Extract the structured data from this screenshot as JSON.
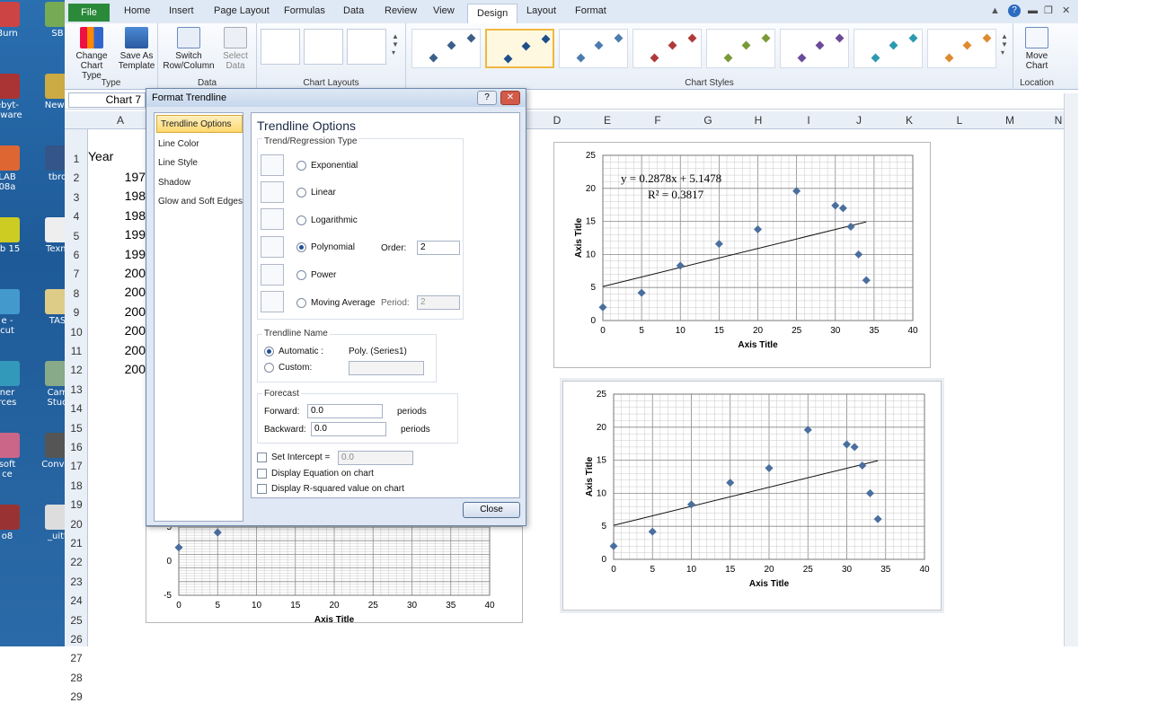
{
  "desktop": {
    "icons": [
      {
        "label": "Burn"
      },
      {
        "label": "SB"
      },
      {
        "label": "ebyt-\nalware"
      },
      {
        "label": "New f"
      },
      {
        "label": "LAB\n08a"
      },
      {
        "label": "tbro"
      },
      {
        "label": "ab 15"
      },
      {
        "label": "Texm"
      },
      {
        "label": "e -\ncut"
      },
      {
        "label": "TAS"
      },
      {
        "label": "ner\nrces"
      },
      {
        "label": "Cam\nStud"
      },
      {
        "label": "soft\nce"
      },
      {
        "label": "Conver"
      },
      {
        "label": "o8"
      },
      {
        "label": "_uitt"
      }
    ]
  },
  "tabs": {
    "file": "File",
    "home": "Home",
    "insert": "Insert",
    "page_layout": "Page Layout",
    "formulas": "Formulas",
    "data": "Data",
    "review": "Review",
    "view": "View",
    "design": "Design",
    "layout": "Layout",
    "format": "Format"
  },
  "ribbon": {
    "change_chart_type": "Change\nChart Type",
    "save_as_template": "Save As\nTemplate",
    "type_group": "Type",
    "switch_row_col": "Switch\nRow/Column",
    "select_data": "Select\nData",
    "data_group": "Data",
    "chart_layouts_group": "Chart Layouts",
    "chart_styles_group": "Chart Styles",
    "move_chart": "Move\nChart",
    "location_group": "Location",
    "style_colors": [
      "#3b5f8a",
      "#1f4f8a",
      "#4c7bb0",
      "#b03a3a",
      "#7a9a3a",
      "#6a4a9a",
      "#2a9ab0",
      "#e08a30"
    ]
  },
  "name_box": "Chart 7",
  "columns": [
    "A",
    "D",
    "E",
    "F",
    "G",
    "H",
    "I",
    "J",
    "K",
    "L",
    "M",
    "N"
  ],
  "rows": [
    "1",
    "2",
    "3",
    "4",
    "5",
    "6",
    "7",
    "8",
    "9",
    "10",
    "11",
    "12",
    "13",
    "14",
    "15",
    "16",
    "17",
    "18",
    "19",
    "20",
    "21",
    "22",
    "23",
    "24",
    "25",
    "26",
    "27",
    "28",
    "29"
  ],
  "cells": {
    "a1": "Year",
    "years": [
      "197",
      "198",
      "198",
      "199",
      "199",
      "200",
      "200",
      "200",
      "200",
      "200",
      "200"
    ]
  },
  "dialog": {
    "title": "Format Trendline",
    "help": "?",
    "close_x": "✕",
    "nav": [
      "Trendline Options",
      "Line Color",
      "Line Style",
      "Shadow",
      "Glow and Soft Edges"
    ],
    "heading": "Trendline Options",
    "regression_label": "Trend/Regression Type",
    "types": {
      "exponential": "Exponential",
      "linear": "Linear",
      "logarithmic": "Logarithmic",
      "polynomial": "Polynomial",
      "power": "Power",
      "moving_average": "Moving Average"
    },
    "order_label": "Order:",
    "order_value": "2",
    "period_label": "Period:",
    "period_value": "2",
    "name_label": "Trendline Name",
    "automatic_label": "Automatic :",
    "automatic_value": "Poly. (Series1)",
    "custom_label": "Custom:",
    "forecast_label": "Forecast",
    "forward_label": "Forward:",
    "forward_value": "0.0",
    "backward_label": "Backward:",
    "backward_value": "0.0",
    "periods": "periods",
    "intercept_label": "Set Intercept =",
    "intercept_value": "0.0",
    "display_equation": "Display Equation on chart",
    "display_r2": "Display R-squared value on chart",
    "close_button": "Close"
  },
  "chart_data": [
    {
      "type": "scatter",
      "title": "",
      "xlabel": "Axis Title",
      "ylabel": "Axis Title",
      "xlim": [
        0,
        40
      ],
      "ylim": [
        0,
        25
      ],
      "xticks": [
        0,
        5,
        10,
        15,
        20,
        25,
        30,
        35,
        40
      ],
      "yticks": [
        0,
        5,
        10,
        15,
        20,
        25
      ],
      "grid": true,
      "points": [
        [
          0,
          2
        ],
        [
          5,
          4.2
        ],
        [
          10,
          8.3
        ],
        [
          15,
          11.6
        ],
        [
          20,
          13.8
        ],
        [
          25,
          19.6
        ],
        [
          30,
          17.4
        ],
        [
          31,
          17
        ],
        [
          32,
          14.2
        ],
        [
          33,
          10
        ],
        [
          34,
          6.1
        ]
      ],
      "trendline": {
        "slope": 0.2878,
        "intercept": 5.1478,
        "x_range": [
          0,
          34
        ]
      },
      "equation": "y = 0.2878x + 5.1478",
      "r_squared": "R² = 0.3817",
      "marker_color": "#4a6f9e"
    },
    {
      "type": "scatter",
      "title": "",
      "xlabel": "Axis Title",
      "ylabel": "Axis Title",
      "xlim": [
        0,
        40
      ],
      "ylim": [
        0,
        25
      ],
      "xticks": [
        0,
        5,
        10,
        15,
        20,
        25,
        30,
        35,
        40
      ],
      "yticks": [
        0,
        5,
        10,
        15,
        20,
        25
      ],
      "grid": true,
      "points": [
        [
          0,
          2
        ],
        [
          5,
          4.2
        ],
        [
          10,
          8.3
        ],
        [
          15,
          11.6
        ],
        [
          20,
          13.8
        ],
        [
          25,
          19.6
        ],
        [
          30,
          17.4
        ],
        [
          31,
          17
        ],
        [
          32,
          14.2
        ],
        [
          33,
          10
        ],
        [
          34,
          6.1
        ]
      ],
      "trendline": {
        "slope": 0.2878,
        "intercept": 5.1478,
        "x_range": [
          0,
          34
        ]
      },
      "marker_color": "#4a6f9e"
    },
    {
      "type": "scatter",
      "title": "",
      "xlabel": "Axis Title",
      "ylabel": "",
      "xlim": [
        0,
        40
      ],
      "ylim": [
        -5,
        5
      ],
      "xticks": [
        0,
        5,
        10,
        15,
        20,
        25,
        30,
        35,
        40
      ],
      "yticks": [
        -5,
        0,
        5
      ],
      "grid": true,
      "points": [
        [
          0,
          2
        ],
        [
          5,
          4.2
        ],
        [
          34,
          6.1
        ]
      ],
      "marker_color": "#4a6f9e"
    }
  ]
}
